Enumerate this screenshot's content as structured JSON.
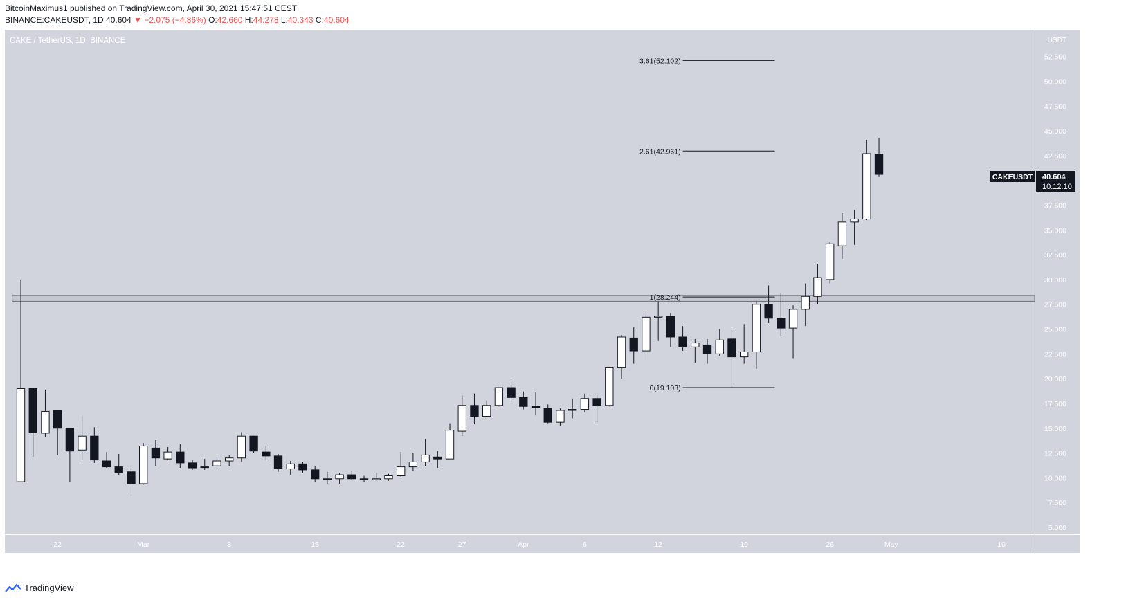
{
  "header": {
    "line1": "BitcoinMaximus1 published on TradingView.com, April 30, 2021 15:47:51 CEST",
    "symbol": "BINANCE:CAKEUSDT, 1D",
    "last": "40.604",
    "change": "−2.075 (−4.86%)",
    "open_label": "O:",
    "open": "42.660",
    "high_label": "H:",
    "high": "44.278",
    "low_label": "L:",
    "low": "40.343",
    "close_label": "C:",
    "close": "40.604"
  },
  "chart_title": "CAKE / TetherUS, 1D, BINANCE",
  "price_tag": {
    "symbol": "CAKEUSDT",
    "price": "40.604",
    "countdown": "10:12:10"
  },
  "footer": {
    "brand": "TradingView"
  },
  "colors": {
    "background": "#d1d4dc",
    "up_body": "#ffffff",
    "down_body": "#131722",
    "wick": "#131722",
    "negative": "#ef5350"
  },
  "chart_data": {
    "type": "candlestick",
    "y_unit": "USDT",
    "ylim": [
      4.3,
      55.2
    ],
    "y_ticks": [
      "5.000",
      "7.500",
      "10.000",
      "12.500",
      "15.000",
      "17.500",
      "20.000",
      "22.500",
      "25.000",
      "27.500",
      "30.000",
      "32.500",
      "35.000",
      "37.500",
      "40.000",
      "42.500",
      "45.000",
      "47.500",
      "50.000",
      "52.500"
    ],
    "y_tick_values": [
      5,
      7.5,
      10,
      12.5,
      15,
      17.5,
      20,
      22.5,
      25,
      27.5,
      30,
      32.5,
      35,
      37.5,
      40,
      42.5,
      45,
      47.5,
      50,
      52.5
    ],
    "x_ticks": [
      {
        "label": "22",
        "index": 3
      },
      {
        "label": "Mar",
        "index": 10
      },
      {
        "label": "8",
        "index": 17
      },
      {
        "label": "15",
        "index": 24
      },
      {
        "label": "22",
        "index": 31
      },
      {
        "label": "27",
        "index": 36
      },
      {
        "label": "Apr",
        "index": 41
      },
      {
        "label": "6",
        "index": 46
      },
      {
        "label": "12",
        "index": 52
      },
      {
        "label": "19",
        "index": 59
      },
      {
        "label": "26",
        "index": 66
      },
      {
        "label": "May",
        "index": 71
      },
      {
        "label": "10",
        "index": 80
      }
    ],
    "x_range": [
      -1.3,
      82.7
    ],
    "candles": [
      {
        "o": 9.6,
        "h": 30.0,
        "l": 9.6,
        "c": 19.0
      },
      {
        "o": 19.0,
        "h": 19.0,
        "l": 12.1,
        "c": 14.6
      },
      {
        "o": 14.5,
        "h": 18.9,
        "l": 14.1,
        "c": 16.7
      },
      {
        "o": 16.8,
        "h": 16.8,
        "l": 12.3,
        "c": 15.0
      },
      {
        "o": 15.0,
        "h": 15.0,
        "l": 9.6,
        "c": 12.7
      },
      {
        "o": 12.8,
        "h": 16.3,
        "l": 11.8,
        "c": 14.2
      },
      {
        "o": 14.2,
        "h": 15.1,
        "l": 11.5,
        "c": 11.8
      },
      {
        "o": 11.7,
        "h": 12.6,
        "l": 11.0,
        "c": 11.1
      },
      {
        "o": 11.1,
        "h": 12.4,
        "l": 10.3,
        "c": 10.5
      },
      {
        "o": 10.6,
        "h": 11.0,
        "l": 8.2,
        "c": 9.4
      },
      {
        "o": 9.4,
        "h": 13.5,
        "l": 9.3,
        "c": 13.2
      },
      {
        "o": 13.0,
        "h": 13.8,
        "l": 11.2,
        "c": 12.0
      },
      {
        "o": 11.9,
        "h": 13.1,
        "l": 11.8,
        "c": 12.6
      },
      {
        "o": 12.6,
        "h": 13.4,
        "l": 11.0,
        "c": 11.5
      },
      {
        "o": 11.5,
        "h": 11.8,
        "l": 10.8,
        "c": 11.0
      },
      {
        "o": 11.1,
        "h": 11.9,
        "l": 10.8,
        "c": 11.1
      },
      {
        "o": 11.2,
        "h": 12.1,
        "l": 10.9,
        "c": 11.7
      },
      {
        "o": 11.7,
        "h": 12.3,
        "l": 11.2,
        "c": 12.0
      },
      {
        "o": 12.0,
        "h": 14.6,
        "l": 11.6,
        "c": 14.2
      },
      {
        "o": 14.2,
        "h": 14.2,
        "l": 12.5,
        "c": 12.7
      },
      {
        "o": 12.6,
        "h": 13.2,
        "l": 11.8,
        "c": 12.2
      },
      {
        "o": 12.2,
        "h": 12.4,
        "l": 10.6,
        "c": 10.9
      },
      {
        "o": 10.9,
        "h": 11.7,
        "l": 10.3,
        "c": 11.4
      },
      {
        "o": 11.4,
        "h": 11.6,
        "l": 10.5,
        "c": 10.8
      },
      {
        "o": 10.8,
        "h": 11.2,
        "l": 9.6,
        "c": 9.9
      },
      {
        "o": 9.9,
        "h": 10.6,
        "l": 9.4,
        "c": 9.9
      },
      {
        "o": 9.9,
        "h": 10.5,
        "l": 9.4,
        "c": 10.3
      },
      {
        "o": 10.3,
        "h": 10.7,
        "l": 9.8,
        "c": 9.9
      },
      {
        "o": 9.9,
        "h": 10.2,
        "l": 9.6,
        "c": 9.8
      },
      {
        "o": 9.8,
        "h": 10.5,
        "l": 9.7,
        "c": 9.9
      },
      {
        "o": 9.9,
        "h": 10.4,
        "l": 9.7,
        "c": 10.2
      },
      {
        "o": 10.2,
        "h": 12.6,
        "l": 10.1,
        "c": 11.1
      },
      {
        "o": 11.1,
        "h": 12.5,
        "l": 10.7,
        "c": 11.6
      },
      {
        "o": 11.6,
        "h": 13.9,
        "l": 11.2,
        "c": 12.3
      },
      {
        "o": 12.1,
        "h": 12.7,
        "l": 11.0,
        "c": 11.9
      },
      {
        "o": 11.9,
        "h": 15.5,
        "l": 11.9,
        "c": 14.8
      },
      {
        "o": 14.7,
        "h": 18.3,
        "l": 14.2,
        "c": 17.3
      },
      {
        "o": 17.3,
        "h": 18.5,
        "l": 15.4,
        "c": 16.2
      },
      {
        "o": 16.2,
        "h": 17.8,
        "l": 16.1,
        "c": 17.3
      },
      {
        "o": 17.3,
        "h": 19.1,
        "l": 17.2,
        "c": 19.1
      },
      {
        "o": 19.1,
        "h": 19.7,
        "l": 17.5,
        "c": 18.1
      },
      {
        "o": 18.1,
        "h": 18.7,
        "l": 16.9,
        "c": 17.2
      },
      {
        "o": 17.2,
        "h": 18.6,
        "l": 16.3,
        "c": 17.1
      },
      {
        "o": 17.0,
        "h": 17.4,
        "l": 15.5,
        "c": 15.6
      },
      {
        "o": 15.6,
        "h": 17.0,
        "l": 15.2,
        "c": 16.8
      },
      {
        "o": 16.8,
        "h": 18.0,
        "l": 16.0,
        "c": 16.9
      },
      {
        "o": 16.9,
        "h": 18.5,
        "l": 16.6,
        "c": 18.0
      },
      {
        "o": 18.0,
        "h": 18.5,
        "l": 15.6,
        "c": 17.3
      },
      {
        "o": 17.3,
        "h": 21.2,
        "l": 17.2,
        "c": 21.1
      },
      {
        "o": 21.1,
        "h": 24.4,
        "l": 20.0,
        "c": 24.2
      },
      {
        "o": 24.1,
        "h": 25.2,
        "l": 21.5,
        "c": 22.8
      },
      {
        "o": 22.8,
        "h": 26.6,
        "l": 21.9,
        "c": 26.2
      },
      {
        "o": 26.2,
        "h": 27.8,
        "l": 23.8,
        "c": 26.3
      },
      {
        "o": 26.3,
        "h": 26.6,
        "l": 23.2,
        "c": 24.2
      },
      {
        "o": 24.2,
        "h": 25.3,
        "l": 22.8,
        "c": 23.2
      },
      {
        "o": 23.2,
        "h": 24.0,
        "l": 21.6,
        "c": 23.6
      },
      {
        "o": 23.4,
        "h": 24.0,
        "l": 21.5,
        "c": 22.5
      },
      {
        "o": 22.5,
        "h": 25.0,
        "l": 22.3,
        "c": 23.9
      },
      {
        "o": 24.0,
        "h": 24.9,
        "l": 19.1,
        "c": 22.2
      },
      {
        "o": 22.2,
        "h": 25.5,
        "l": 21.5,
        "c": 22.7
      },
      {
        "o": 22.7,
        "h": 27.8,
        "l": 21.0,
        "c": 27.5
      },
      {
        "o": 27.5,
        "h": 29.4,
        "l": 25.6,
        "c": 26.1
      },
      {
        "o": 26.1,
        "h": 28.6,
        "l": 24.3,
        "c": 25.1
      },
      {
        "o": 25.1,
        "h": 27.4,
        "l": 22.0,
        "c": 27.0
      },
      {
        "o": 27.0,
        "h": 29.6,
        "l": 25.3,
        "c": 28.3
      },
      {
        "o": 28.3,
        "h": 31.6,
        "l": 27.5,
        "c": 30.2
      },
      {
        "o": 30.0,
        "h": 33.8,
        "l": 29.6,
        "c": 33.6
      },
      {
        "o": 33.4,
        "h": 36.7,
        "l": 32.1,
        "c": 35.8
      },
      {
        "o": 35.8,
        "h": 37.0,
        "l": 33.5,
        "c": 36.1
      },
      {
        "o": 36.1,
        "h": 44.1,
        "l": 36.0,
        "c": 42.7
      },
      {
        "o": 42.66,
        "h": 44.278,
        "l": 40.343,
        "c": 40.604
      }
    ],
    "annotations": {
      "horizontal_zone": {
        "y_low": 27.8,
        "y_high": 28.4
      },
      "fib_levels": [
        {
          "label": "3.61(52.102)",
          "value": 52.102
        },
        {
          "label": "2.61(42.961)",
          "value": 42.961
        },
        {
          "label": "1(28.244)",
          "value": 28.244
        },
        {
          "label": "0(19.103)",
          "value": 19.103
        }
      ],
      "fib_x_range": [
        54,
        61.5
      ]
    }
  }
}
